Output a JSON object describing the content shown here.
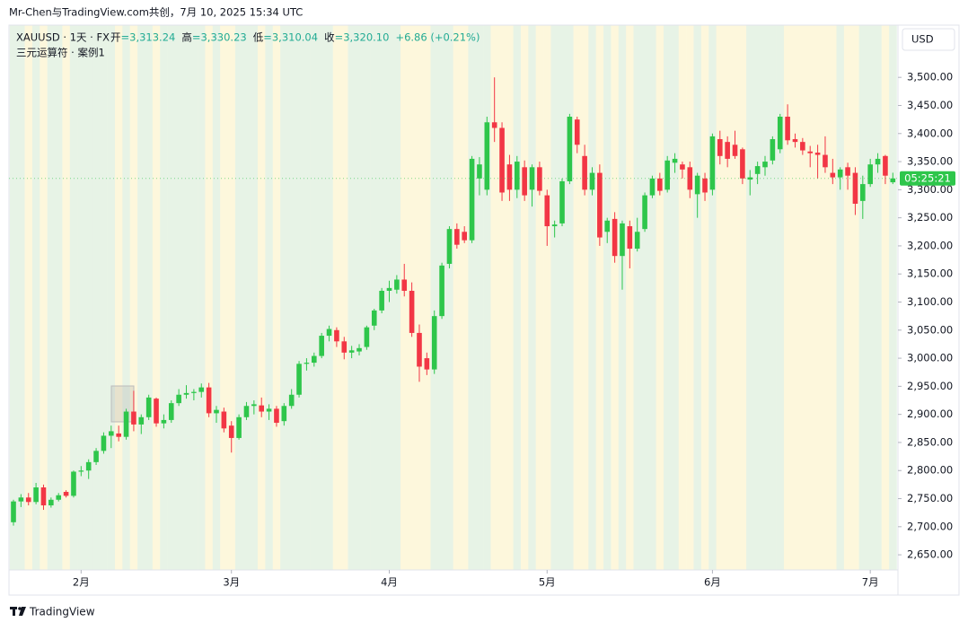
{
  "title": "Mr-Chen与TradingView.com共创，7月 10, 2025 15:34 UTC",
  "symbol": "XAUUSD · 1天 · FX",
  "legend_items": [
    {
      "label": "开",
      "value": "=3,313.24"
    },
    {
      "label": "高",
      "value": "=3,330.23"
    },
    {
      "label": "低",
      "value": "=3,310.04"
    },
    {
      "label": "收",
      "value": "=3,320.10"
    },
    {
      "label": "",
      "value": "+6.86 (+0.21%)"
    }
  ],
  "indicator": "三元运算符 · 案例1",
  "currency": "USD",
  "countdown": "05:25:21",
  "brand": "TradingView",
  "chart_data": {
    "type": "candlestick",
    "up_color": "#2ec64b",
    "down_color": "#f23645",
    "ylim": [
      2623,
      3593
    ],
    "yticks": [
      {
        "value": 2650,
        "label": "2,650.00"
      },
      {
        "value": 2700,
        "label": "2,700.00"
      },
      {
        "value": 2750,
        "label": "2,750.00"
      },
      {
        "value": 2800,
        "label": "2,800.00"
      },
      {
        "value": 2850,
        "label": "2,850.00"
      },
      {
        "value": 2900,
        "label": "2,900.00"
      },
      {
        "value": 2950,
        "label": "2,950.00"
      },
      {
        "value": 3000,
        "label": "3,000.00"
      },
      {
        "value": 3050,
        "label": "3,050.00"
      },
      {
        "value": 3100,
        "label": "3,100.00"
      },
      {
        "value": 3150,
        "label": "3,150.00"
      },
      {
        "value": 3200,
        "label": "3,200.00"
      },
      {
        "value": 3250,
        "label": "3,250.00"
      },
      {
        "value": 3300,
        "label": "3,300.00"
      },
      {
        "value": 3350,
        "label": "3,350.00"
      },
      {
        "value": 3400,
        "label": "3,400.00"
      },
      {
        "value": 3450,
        "label": "3,450.00"
      },
      {
        "value": 3500,
        "label": "3,500.00"
      }
    ],
    "categories": [
      null,
      null,
      null,
      null,
      null,
      null,
      null,
      null,
      null,
      "2月",
      null,
      null,
      null,
      null,
      null,
      null,
      null,
      null,
      null,
      null,
      null,
      null,
      null,
      null,
      null,
      null,
      null,
      null,
      null,
      "3月",
      null,
      null,
      null,
      null,
      null,
      null,
      null,
      null,
      null,
      null,
      null,
      null,
      null,
      null,
      null,
      null,
      null,
      null,
      null,
      null,
      "4月",
      null,
      null,
      null,
      null,
      null,
      null,
      null,
      null,
      null,
      null,
      null,
      null,
      null,
      null,
      null,
      null,
      null,
      null,
      null,
      null,
      "5月",
      null,
      null,
      null,
      null,
      null,
      null,
      null,
      null,
      null,
      null,
      null,
      null,
      null,
      null,
      null,
      null,
      null,
      null,
      null,
      null,
      null,
      "6月",
      null,
      null,
      null,
      null,
      null,
      null,
      null,
      null,
      null,
      null,
      null,
      null,
      null,
      null,
      null,
      null,
      null,
      null,
      null,
      null,
      "7月",
      null,
      null,
      null
    ],
    "candles": [
      [
        2708,
        2748,
        2702,
        2745
      ],
      [
        2745,
        2758,
        2735,
        2752
      ],
      [
        2752,
        2760,
        2738,
        2744
      ],
      [
        2744,
        2778,
        2740,
        2770
      ],
      [
        2770,
        2775,
        2730,
        2738
      ],
      [
        2738,
        2752,
        2734,
        2748
      ],
      [
        2748,
        2760,
        2745,
        2756
      ],
      [
        2762,
        2765,
        2752,
        2755
      ],
      [
        2755,
        2800,
        2752,
        2798
      ],
      [
        2798,
        2808,
        2790,
        2800
      ],
      [
        2800,
        2820,
        2785,
        2815
      ],
      [
        2815,
        2840,
        2810,
        2835
      ],
      [
        2835,
        2868,
        2830,
        2862
      ],
      [
        2862,
        2880,
        2840,
        2870
      ],
      [
        2866,
        2880,
        2852,
        2860
      ],
      [
        2860,
        2910,
        2855,
        2905
      ],
      [
        2905,
        2942,
        2870,
        2882
      ],
      [
        2882,
        2900,
        2865,
        2895
      ],
      [
        2895,
        2935,
        2890,
        2930
      ],
      [
        2928,
        2930,
        2878,
        2884
      ],
      [
        2884,
        2900,
        2875,
        2890
      ],
      [
        2890,
        2925,
        2885,
        2920
      ],
      [
        2920,
        2945,
        2915,
        2935
      ],
      [
        2935,
        2952,
        2928,
        2938
      ],
      [
        2938,
        2945,
        2925,
        2940
      ],
      [
        2940,
        2955,
        2930,
        2948
      ],
      [
        2948,
        2956,
        2895,
        2902
      ],
      [
        2902,
        2915,
        2885,
        2908
      ],
      [
        2905,
        2912,
        2868,
        2875
      ],
      [
        2880,
        2888,
        2832,
        2858
      ],
      [
        2858,
        2900,
        2855,
        2895
      ],
      [
        2895,
        2922,
        2890,
        2915
      ],
      [
        2915,
        2925,
        2900,
        2918
      ],
      [
        2916,
        2930,
        2895,
        2905
      ],
      [
        2905,
        2918,
        2890,
        2910
      ],
      [
        2910,
        2915,
        2878,
        2885
      ],
      [
        2888,
        2920,
        2880,
        2915
      ],
      [
        2915,
        2945,
        2910,
        2935
      ],
      [
        2935,
        2995,
        2930,
        2990
      ],
      [
        2990,
        3000,
        2978,
        2992
      ],
      [
        2992,
        3010,
        2985,
        3004
      ],
      [
        3004,
        3045,
        3000,
        3040
      ],
      [
        3040,
        3058,
        3030,
        3052
      ],
      [
        3050,
        3055,
        3020,
        3030
      ],
      [
        3030,
        3038,
        2998,
        3010
      ],
      [
        3010,
        3022,
        3000,
        3014
      ],
      [
        3012,
        3025,
        3005,
        3018
      ],
      [
        3020,
        3058,
        3015,
        3055
      ],
      [
        3058,
        3088,
        3050,
        3085
      ],
      [
        3085,
        3125,
        3080,
        3120
      ],
      [
        3120,
        3138,
        3100,
        3125
      ],
      [
        3122,
        3148,
        3115,
        3140
      ],
      [
        3140,
        3168,
        3110,
        3120
      ],
      [
        3120,
        3135,
        3038,
        3045
      ],
      [
        3045,
        3060,
        2958,
        2985
      ],
      [
        3000,
        3010,
        2970,
        2980
      ],
      [
        2980,
        3085,
        2972,
        3075
      ],
      [
        3075,
        3170,
        3070,
        3165
      ],
      [
        3168,
        3235,
        3160,
        3230
      ],
      [
        3230,
        3240,
        3195,
        3202
      ],
      [
        3225,
        3235,
        3205,
        3210
      ],
      [
        3210,
        3360,
        3205,
        3355
      ],
      [
        3320,
        3358,
        3290,
        3345
      ],
      [
        3300,
        3430,
        3290,
        3420
      ],
      [
        3420,
        3500,
        3385,
        3410
      ],
      [
        3410,
        3420,
        3280,
        3295
      ],
      [
        3345,
        3362,
        3280,
        3300
      ],
      [
        3300,
        3360,
        3285,
        3350
      ],
      [
        3340,
        3352,
        3280,
        3290
      ],
      [
        3300,
        3345,
        3270,
        3340
      ],
      [
        3340,
        3350,
        3290,
        3298
      ],
      [
        3290,
        3300,
        3200,
        3235
      ],
      [
        3235,
        3245,
        3215,
        3238
      ],
      [
        3240,
        3320,
        3235,
        3315
      ],
      [
        3315,
        3435,
        3310,
        3430
      ],
      [
        3425,
        3430,
        3365,
        3380
      ],
      [
        3360,
        3380,
        3290,
        3300
      ],
      [
        3300,
        3340,
        3290,
        3330
      ],
      [
        3330,
        3345,
        3200,
        3215
      ],
      [
        3225,
        3250,
        3205,
        3245
      ],
      [
        3248,
        3260,
        3170,
        3182
      ],
      [
        3182,
        3245,
        3122,
        3240
      ],
      [
        3235,
        3245,
        3160,
        3195
      ],
      [
        3195,
        3250,
        3190,
        3225
      ],
      [
        3230,
        3295,
        3225,
        3290
      ],
      [
        3290,
        3325,
        3285,
        3320
      ],
      [
        3320,
        3330,
        3290,
        3298
      ],
      [
        3300,
        3360,
        3295,
        3352
      ],
      [
        3348,
        3365,
        3330,
        3355
      ],
      [
        3345,
        3350,
        3320,
        3336
      ],
      [
        3340,
        3350,
        3285,
        3300
      ],
      [
        3292,
        3330,
        3250,
        3325
      ],
      [
        3320,
        3330,
        3280,
        3295
      ],
      [
        3300,
        3400,
        3290,
        3395
      ],
      [
        3390,
        3405,
        3345,
        3360
      ],
      [
        3385,
        3395,
        3340,
        3355
      ],
      [
        3380,
        3405,
        3355,
        3360
      ],
      [
        3372,
        3375,
        3310,
        3320
      ],
      [
        3318,
        3335,
        3290,
        3322
      ],
      [
        3328,
        3350,
        3310,
        3342
      ],
      [
        3340,
        3360,
        3325,
        3350
      ],
      [
        3352,
        3395,
        3345,
        3390
      ],
      [
        3372,
        3435,
        3365,
        3430
      ],
      [
        3430,
        3452,
        3380,
        3388
      ],
      [
        3390,
        3400,
        3375,
        3385
      ],
      [
        3385,
        3392,
        3362,
        3370
      ],
      [
        3368,
        3378,
        3340,
        3365
      ],
      [
        3366,
        3380,
        3320,
        3362
      ],
      [
        3362,
        3395,
        3330,
        3340
      ],
      [
        3330,
        3355,
        3310,
        3322
      ],
      [
        3322,
        3340,
        3300,
        3336
      ],
      [
        3340,
        3348,
        3300,
        3325
      ],
      [
        3330,
        3340,
        3255,
        3275
      ],
      [
        3280,
        3325,
        3248,
        3310
      ],
      [
        3310,
        3355,
        3305,
        3345
      ],
      [
        3345,
        3365,
        3330,
        3355
      ],
      [
        3360,
        3362,
        3310,
        3325
      ],
      [
        3313.24,
        3330.23,
        3310.04,
        3320.1
      ]
    ]
  }
}
